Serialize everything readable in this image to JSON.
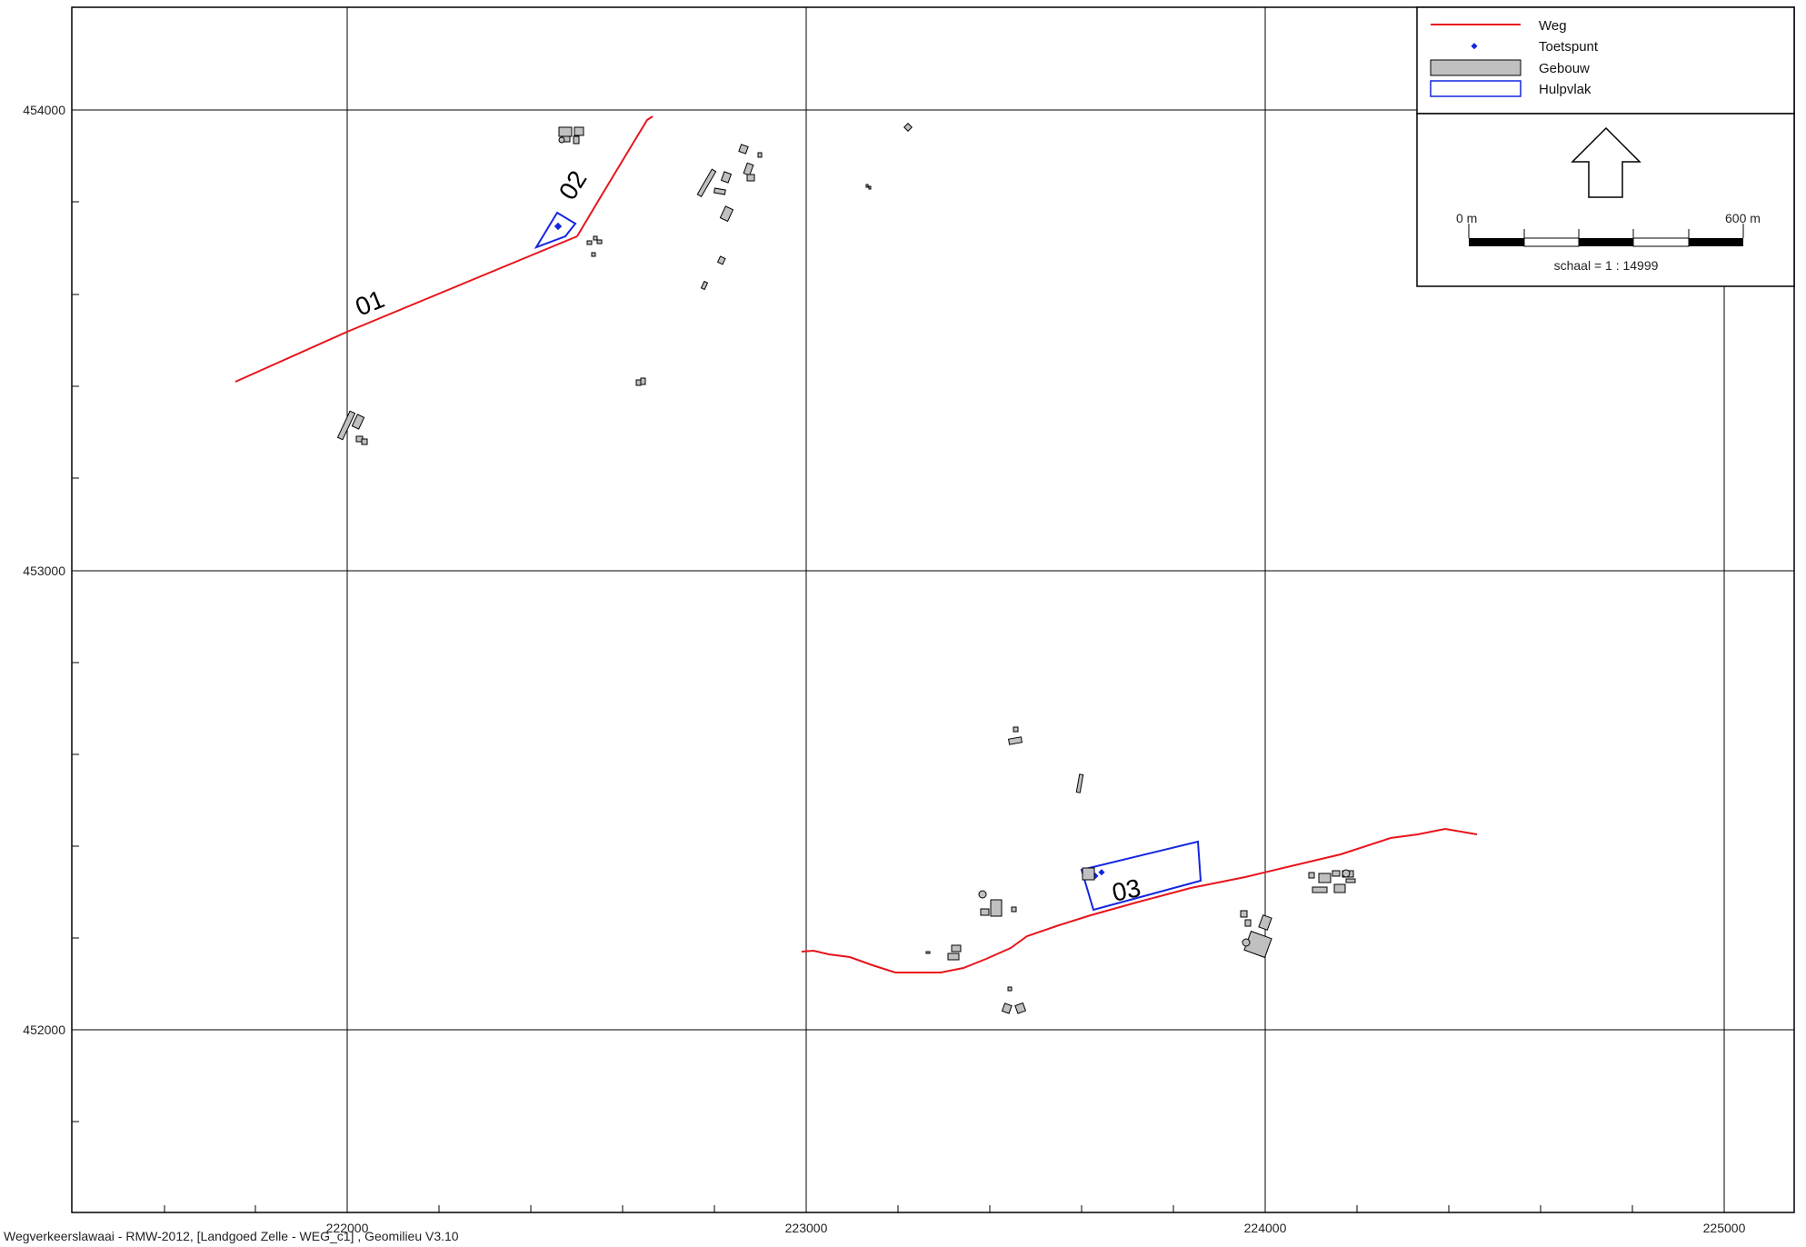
{
  "legend": {
    "items": [
      {
        "label": "Weg",
        "symbol": "line",
        "color": "#e8141c"
      },
      {
        "label": "Toetspunt",
        "symbol": "point",
        "color": "#1426e0"
      },
      {
        "label": "Gebouw",
        "symbol": "fill",
        "color": "#c0c0c0"
      },
      {
        "label": "Hulpvlak",
        "symbol": "outline",
        "color": "#1426e0"
      }
    ]
  },
  "scalebar": {
    "start_label": "0 m",
    "end_label": "600 m",
    "scale_text": "schaal = 1 : 14999"
  },
  "axes": {
    "x_ticks": [
      "222000",
      "223000",
      "224000",
      "225000"
    ],
    "y_ticks": [
      "454000",
      "453000",
      "452000"
    ]
  },
  "roads": [
    {
      "id": "01",
      "label": "01"
    },
    {
      "id": "02",
      "label": "02"
    },
    {
      "id": "03",
      "label": "03"
    }
  ],
  "footer": "Wegverkeerslawaai - RMW-2012, [Landgoed Zelle - WEG_c1] , Geomilieu V3.10",
  "colors": {
    "road": "#e8141c",
    "hulpvlak": "#1426e0",
    "building_fill": "#c0c0c0",
    "grid": "#000000"
  }
}
